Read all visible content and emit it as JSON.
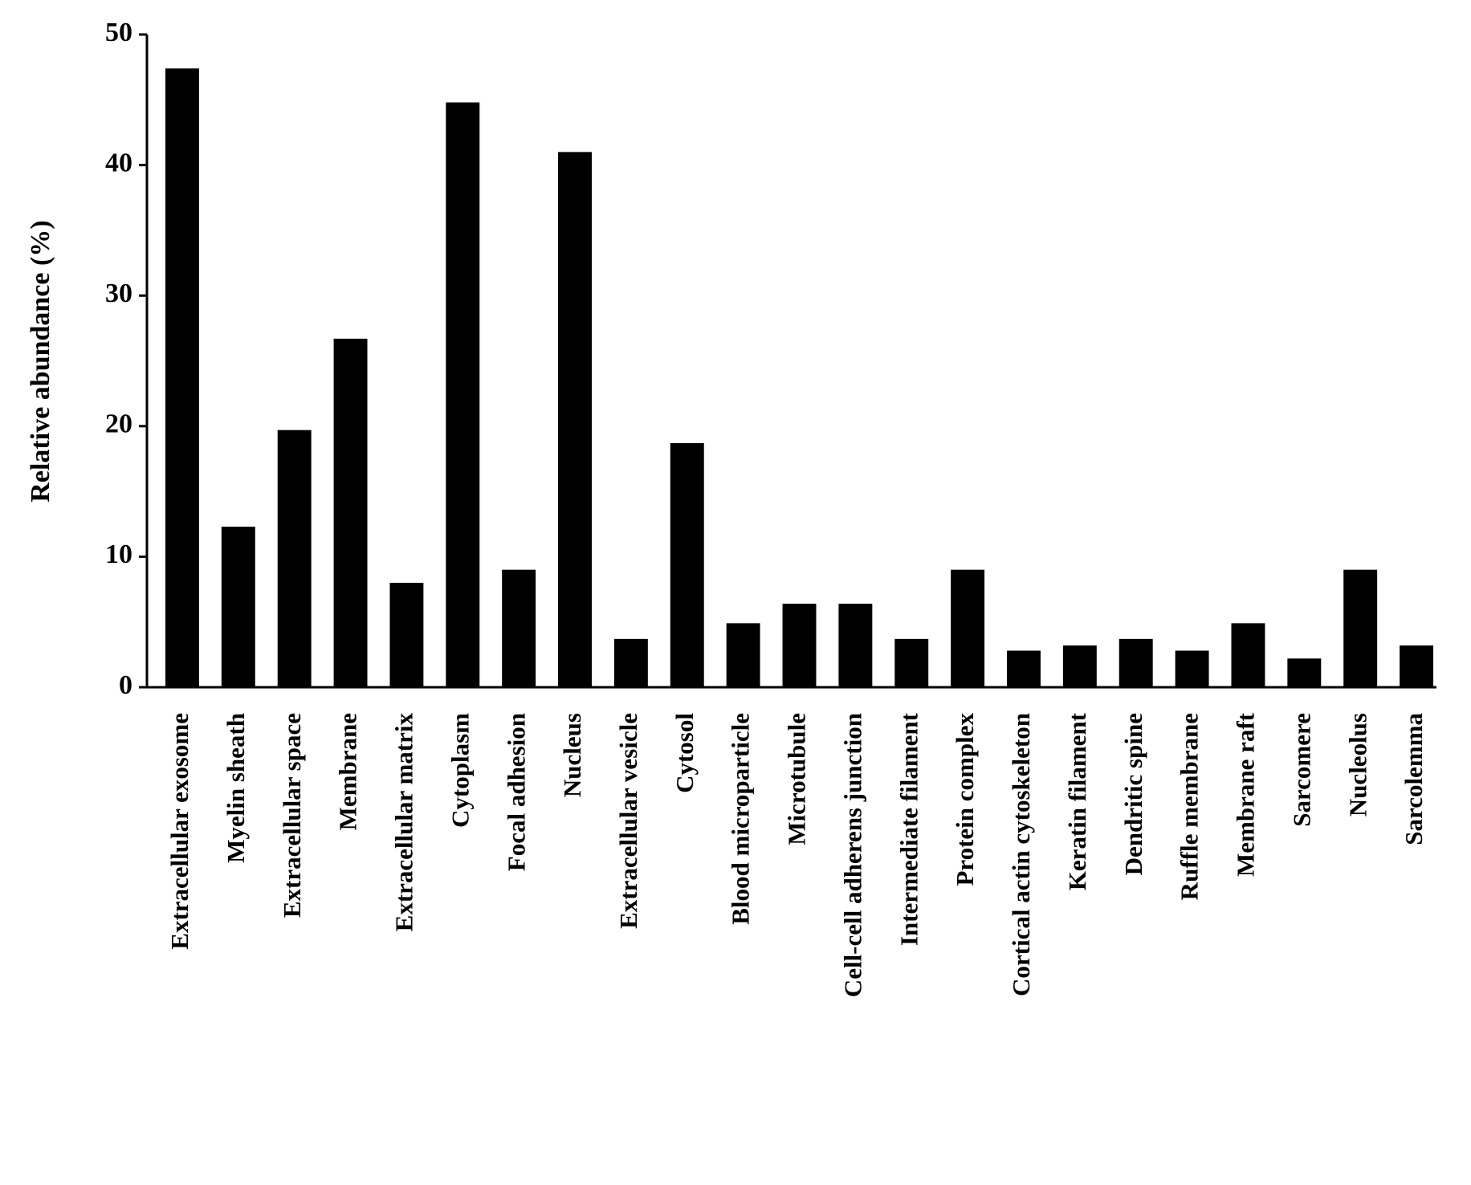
{
  "chart_data": {
    "type": "bar",
    "y_label": "Relative abundance (%)",
    "categories": [
      "Extracellular exosome",
      "Myelin sheath",
      "Extracellular space",
      "Membrane",
      "Extracellular matrix",
      "Cytoplasm",
      "Focal adhesion",
      "Nucleus",
      "Extracellular vesicle",
      "Cytosol",
      "Blood microparticle",
      "Microtubule",
      "Cell-cell adherens junction",
      "Intermediate filament",
      "Protein complex",
      "Cortical actin cytoskeleton",
      "Keratin filament",
      "Dendritic spine",
      "Ruffle membrane",
      "Membrane raft",
      "Sarcomere",
      "Nucleolus",
      "Sarcolemma"
    ],
    "values": [
      47.4,
      12.3,
      19.7,
      26.7,
      8.0,
      44.8,
      9.0,
      41.0,
      3.7,
      18.7,
      4.9,
      6.4,
      6.4,
      3.7,
      9.0,
      2.8,
      3.2,
      3.7,
      2.8,
      4.9,
      2.2,
      9.0,
      3.2
    ],
    "color": "#000000",
    "ylim": [
      0,
      50
    ],
    "yticks": [
      0,
      10,
      20,
      30,
      40,
      50
    ],
    "grid": false
  }
}
